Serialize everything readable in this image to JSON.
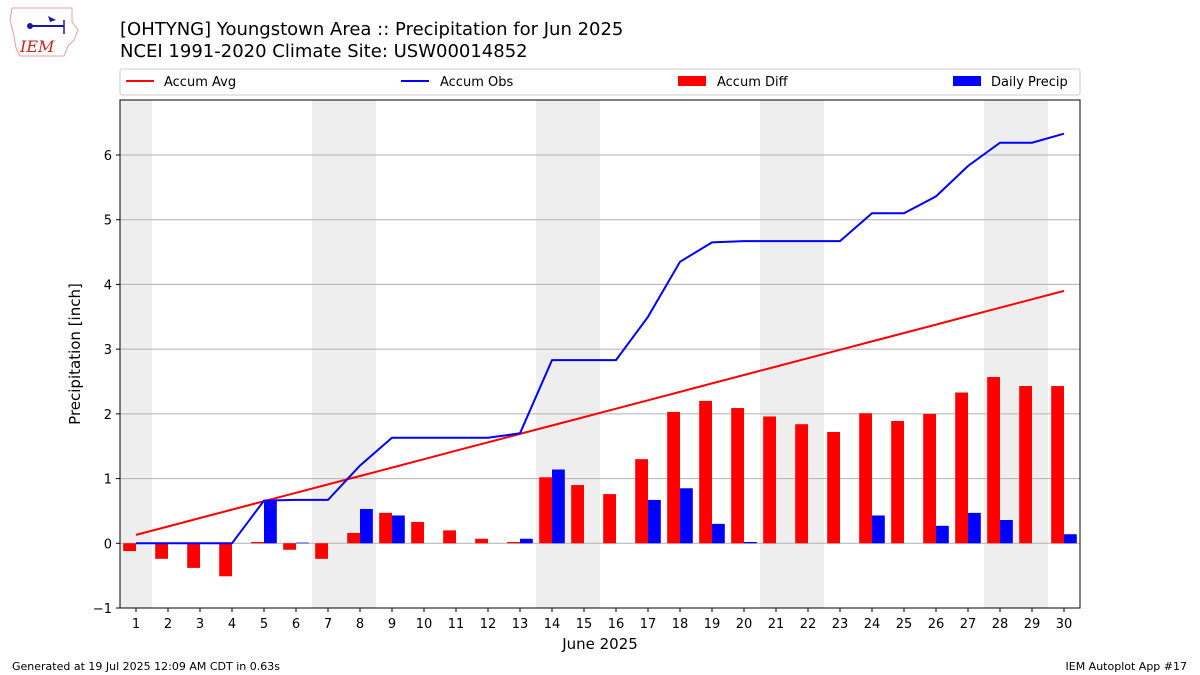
{
  "header": {
    "title": "[OHTYNG] Youngstown Area :: Precipitation for Jun 2025",
    "subtitle": "NCEI 1991-2020 Climate Site: USW00014852"
  },
  "logo": {
    "text": "IEM"
  },
  "footer": {
    "generated": "Generated at 19 Jul 2025 12:09 AM CDT in 0.63s",
    "app": "IEM Autoplot App #17"
  },
  "colors": {
    "accum_avg": "#ff0000",
    "accum_obs": "#0000ff",
    "accum_diff": "#ff0000",
    "daily_precip": "#0000ff",
    "weekend_shade": "#eeeeee",
    "grid": "#b0b0b0"
  },
  "chart_data": {
    "type": "bar",
    "xlabel": "June 2025",
    "ylabel": "Precipitation [inch]",
    "ylim": [
      -1,
      6.85
    ],
    "yticks": [
      -1,
      0,
      1,
      2,
      3,
      4,
      5,
      6
    ],
    "xticks": [
      1,
      2,
      3,
      4,
      5,
      6,
      7,
      8,
      9,
      10,
      11,
      12,
      13,
      14,
      15,
      16,
      17,
      18,
      19,
      20,
      21,
      22,
      23,
      24,
      25,
      26,
      27,
      28,
      29,
      30
    ],
    "grid": "horizontal",
    "legend_position": "top",
    "shaded_weekends": [
      [
        1,
        1
      ],
      [
        7,
        8
      ],
      [
        14,
        15
      ],
      [
        21,
        22
      ],
      [
        28,
        29
      ]
    ],
    "series": [
      {
        "name": "Accum Avg",
        "kind": "line",
        "values": [
          0.13,
          0.26,
          0.39,
          0.52,
          0.65,
          0.78,
          0.91,
          1.04,
          1.17,
          1.3,
          1.43,
          1.56,
          1.69,
          1.82,
          1.95,
          2.08,
          2.21,
          2.34,
          2.47,
          2.6,
          2.73,
          2.86,
          2.99,
          3.12,
          3.25,
          3.38,
          3.51,
          3.64,
          3.77,
          3.9
        ]
      },
      {
        "name": "Accum Obs",
        "kind": "line",
        "values": [
          0,
          0,
          0,
          0,
          0.66,
          0.67,
          0.67,
          1.2,
          1.63,
          1.63,
          1.63,
          1.63,
          1.7,
          2.83,
          2.83,
          2.83,
          3.5,
          4.35,
          4.65,
          4.67,
          4.67,
          4.67,
          4.67,
          5.1,
          5.1,
          5.36,
          5.83,
          6.19,
          6.19,
          6.33
        ]
      },
      {
        "name": "Accum Diff",
        "kind": "bar",
        "values": [
          -0.12,
          -0.24,
          -0.38,
          -0.51,
          0.02,
          -0.1,
          -0.24,
          0.16,
          0.47,
          0.33,
          0.2,
          0.07,
          0.02,
          1.02,
          0.9,
          0.76,
          1.3,
          2.03,
          2.2,
          2.09,
          1.96,
          1.84,
          1.72,
          2.01,
          1.89,
          2.0,
          2.33,
          2.57,
          2.43,
          2.43
        ]
      },
      {
        "name": "Daily Precip",
        "kind": "bar",
        "values": [
          0,
          0,
          0,
          0,
          0.66,
          0.01,
          0,
          0.53,
          0.43,
          0,
          0,
          0,
          0.07,
          1.14,
          0,
          0,
          0.67,
          0.85,
          0.3,
          0.02,
          0,
          0,
          0,
          0.43,
          0,
          0.27,
          0.47,
          0.36,
          0,
          0.14
        ]
      }
    ]
  }
}
